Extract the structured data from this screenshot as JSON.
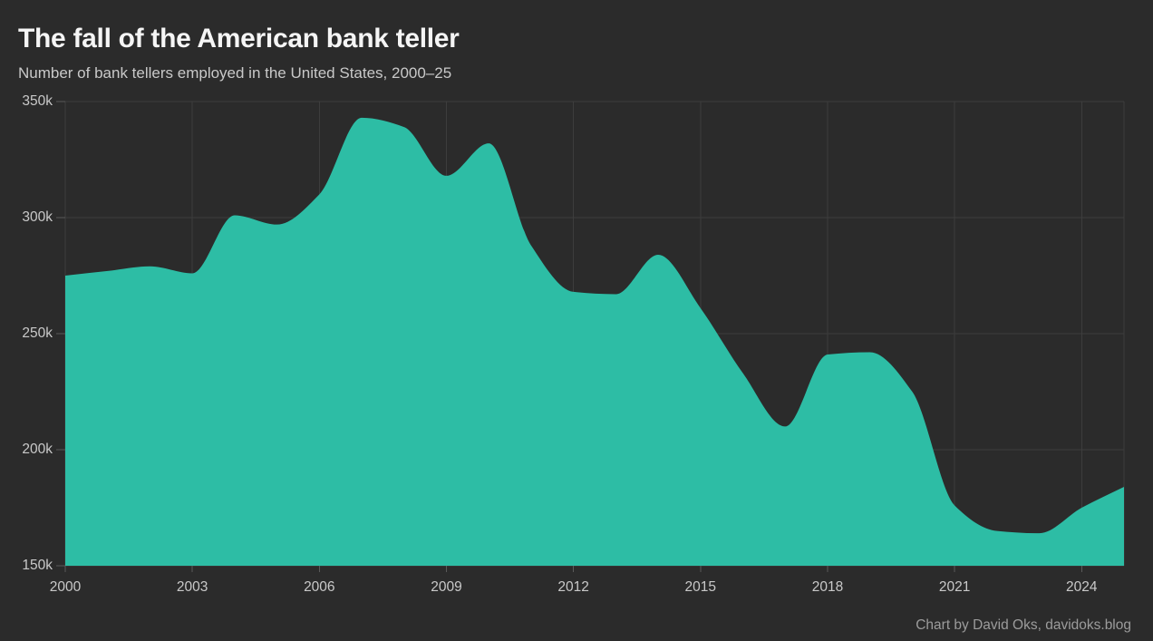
{
  "title": "The fall of the American bank teller",
  "subtitle": "Number of bank tellers employed in the United States, 2000–25",
  "footer": "Chart by David Oks, davidoks.blog",
  "colors": {
    "background": "#2b2b2b",
    "area": "#2dbda5",
    "gridline": "#3d3d3d",
    "tick_mark": "#5a5a5a",
    "axis_label": "#c9c9c9",
    "title_text": "#f5f5f5",
    "subtitle_text": "#c9c9c9",
    "footer_text": "#9c9c9c"
  },
  "chart_data": {
    "type": "area",
    "title": "The fall of the American bank teller",
    "subtitle": "Number of bank tellers employed in the United States, 2000–25",
    "xlabel": "",
    "ylabel": "",
    "unit": "thousands of employed bank tellers",
    "x": [
      2000,
      2001,
      2002,
      2003,
      2004,
      2005,
      2006,
      2007,
      2008,
      2009,
      2010,
      2011,
      2012,
      2013,
      2014,
      2015,
      2016,
      2017,
      2018,
      2019,
      2020,
      2021,
      2022,
      2023,
      2024,
      2025
    ],
    "series": [
      {
        "name": "Bank tellers employed (thousands)",
        "values": [
          275,
          277,
          279,
          276,
          301,
          297,
          310,
          343,
          339,
          318,
          332,
          288,
          268,
          267,
          284,
          261,
          233,
          210,
          241,
          242,
          225,
          176,
          165,
          164,
          175,
          184
        ]
      }
    ],
    "xlim": [
      2000,
      2025
    ],
    "ylim": [
      150,
      350
    ],
    "y_ticks": [
      {
        "value": 150,
        "label": "150k"
      },
      {
        "value": 200,
        "label": "200k"
      },
      {
        "value": 250,
        "label": "250k"
      },
      {
        "value": 300,
        "label": "300k"
      },
      {
        "value": 350,
        "label": "350k"
      }
    ],
    "x_ticks": [
      {
        "value": 2000,
        "label": "2000"
      },
      {
        "value": 2003,
        "label": "2003"
      },
      {
        "value": 2006,
        "label": "2006"
      },
      {
        "value": 2009,
        "label": "2009"
      },
      {
        "value": 2012,
        "label": "2012"
      },
      {
        "value": 2015,
        "label": "2015"
      },
      {
        "value": 2018,
        "label": "2018"
      },
      {
        "value": 2021,
        "label": "2021"
      },
      {
        "value": 2024,
        "label": "2024"
      }
    ],
    "grid": true,
    "legend": false,
    "area_color": "#2dbda5"
  }
}
